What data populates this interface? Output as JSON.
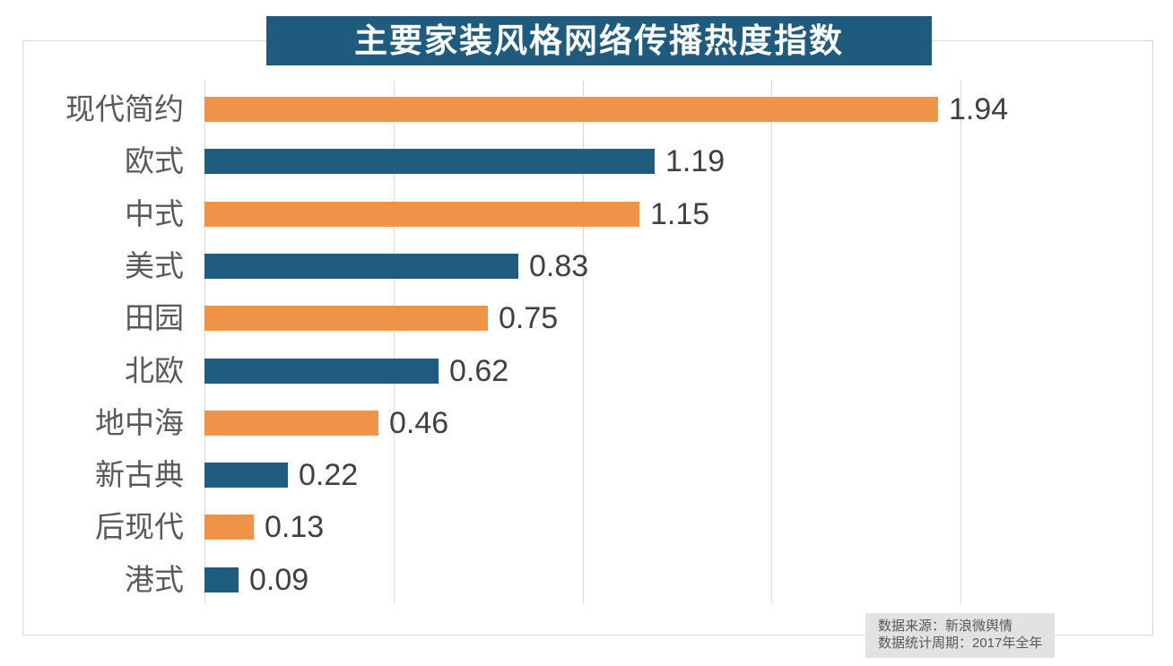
{
  "chart_data": {
    "type": "bar",
    "orientation": "horizontal",
    "title": "主要家装风格网络传播热度指数",
    "categories": [
      "现代简约",
      "欧式",
      "中式",
      "美式",
      "田园",
      "北欧",
      "地中海",
      "新古典",
      "后现代",
      "港式"
    ],
    "values": [
      1.94,
      1.19,
      1.15,
      0.83,
      0.75,
      0.62,
      0.46,
      0.22,
      0.13,
      0.09
    ],
    "value_labels": [
      "1.94",
      "1.19",
      "1.15",
      "0.83",
      "0.75",
      "0.62",
      "0.46",
      "0.22",
      "0.13",
      "0.09"
    ],
    "xlim": [
      0,
      2
    ],
    "gridline_step": 0.5,
    "grid": true,
    "legend_position": "none",
    "xlabel": "",
    "ylabel": "",
    "bar_palette_alternating": [
      "#EF9349",
      "#1F5C7D"
    ]
  },
  "source": {
    "line1": "数据来源：新浪微舆情",
    "line2": "数据统计周期：2017年全年"
  },
  "colors": {
    "orange_bar": "#EF9349",
    "teal_bar": "#1F5C7D",
    "banner_bg": "#1E5B7E",
    "title_text": "#FFFFFF",
    "grid_line": "#D9D9D9",
    "category_text": "#595959",
    "value_text": "#404040",
    "source_bg": "#E2E2E2",
    "source_text": "#595959"
  }
}
